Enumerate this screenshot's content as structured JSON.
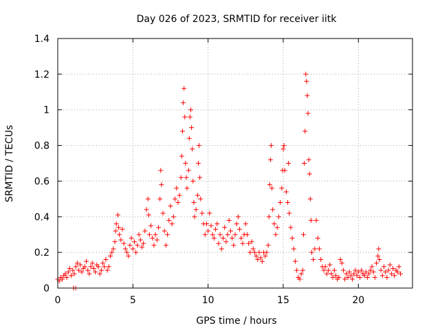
{
  "chart_data": {
    "type": "scatter",
    "title": "Day 026 of 2023, SRMTID for receiver iitk",
    "xlabel": "GPS time / hours",
    "ylabel": "SRMTID / TECUs",
    "xlim": [
      0,
      23.6
    ],
    "ylim": [
      0,
      1.4
    ],
    "xticks": [
      0,
      5,
      10,
      15,
      20
    ],
    "xtick_labels": [
      "0",
      "5",
      "10",
      "15",
      "20"
    ],
    "yticks": [
      0,
      0.2,
      0.4,
      0.6,
      0.8,
      1,
      1.2,
      1.4
    ],
    "ytick_labels": [
      "0",
      "0.2",
      "0.4",
      "0.6",
      "0.8",
      "1",
      "1.2",
      "1.4"
    ],
    "grid": true,
    "marker": "+",
    "color": "#ff0000",
    "series": [
      {
        "name": "SRMTID",
        "points": [
          [
            0.0,
            0.05
          ],
          [
            0.1,
            0.04
          ],
          [
            0.2,
            0.06
          ],
          [
            0.3,
            0.05
          ],
          [
            0.4,
            0.07
          ],
          [
            0.5,
            0.08
          ],
          [
            0.6,
            0.06
          ],
          [
            0.7,
            0.09
          ],
          [
            0.8,
            0.11
          ],
          [
            0.9,
            0.07
          ],
          [
            1.0,
            0.1
          ],
          [
            1.05,
            0.0
          ],
          [
            1.2,
            0.0
          ],
          [
            1.1,
            0.08
          ],
          [
            1.2,
            0.12
          ],
          [
            1.3,
            0.14
          ],
          [
            1.4,
            0.1
          ],
          [
            1.5,
            0.13
          ],
          [
            1.6,
            0.09
          ],
          [
            1.7,
            0.11
          ],
          [
            1.8,
            0.12
          ],
          [
            1.9,
            0.15
          ],
          [
            2.0,
            0.1
          ],
          [
            2.1,
            0.08
          ],
          [
            2.2,
            0.12
          ],
          [
            2.3,
            0.14
          ],
          [
            2.4,
            0.11
          ],
          [
            2.5,
            0.09
          ],
          [
            2.6,
            0.13
          ],
          [
            2.7,
            0.12
          ],
          [
            2.8,
            0.08
          ],
          [
            2.9,
            0.1
          ],
          [
            3.0,
            0.14
          ],
          [
            3.1,
            0.12
          ],
          [
            3.2,
            0.16
          ],
          [
            3.3,
            0.1
          ],
          [
            3.4,
            0.12
          ],
          [
            3.5,
            0.18
          ],
          [
            3.6,
            0.2
          ],
          [
            3.7,
            0.22
          ],
          [
            3.8,
            0.26
          ],
          [
            3.85,
            0.32
          ],
          [
            3.9,
            0.36
          ],
          [
            4.0,
            0.41
          ],
          [
            4.05,
            0.34
          ],
          [
            4.1,
            0.3
          ],
          [
            4.2,
            0.27
          ],
          [
            4.3,
            0.33
          ],
          [
            4.4,
            0.25
          ],
          [
            4.5,
            0.22
          ],
          [
            4.6,
            0.2
          ],
          [
            4.7,
            0.18
          ],
          [
            4.8,
            0.24
          ],
          [
            4.9,
            0.28
          ],
          [
            5.0,
            0.22
          ],
          [
            5.1,
            0.26
          ],
          [
            5.2,
            0.2
          ],
          [
            5.3,
            0.24
          ],
          [
            5.4,
            0.3
          ],
          [
            5.5,
            0.27
          ],
          [
            5.6,
            0.23
          ],
          [
            5.7,
            0.25
          ],
          [
            5.8,
            0.32
          ],
          [
            5.9,
            0.44
          ],
          [
            6.0,
            0.5
          ],
          [
            6.05,
            0.41
          ],
          [
            6.1,
            0.3
          ],
          [
            6.2,
            0.35
          ],
          [
            6.3,
            0.28
          ],
          [
            6.4,
            0.24
          ],
          [
            6.5,
            0.3
          ],
          [
            6.6,
            0.27
          ],
          [
            6.7,
            0.34
          ],
          [
            6.8,
            0.5
          ],
          [
            6.85,
            0.66
          ],
          [
            6.9,
            0.58
          ],
          [
            7.0,
            0.42
          ],
          [
            7.1,
            0.32
          ],
          [
            7.2,
            0.24
          ],
          [
            7.3,
            0.3
          ],
          [
            7.4,
            0.38
          ],
          [
            7.5,
            0.46
          ],
          [
            7.6,
            0.36
          ],
          [
            7.7,
            0.4
          ],
          [
            7.8,
            0.5
          ],
          [
            7.9,
            0.56
          ],
          [
            8.0,
            0.48
          ],
          [
            8.1,
            0.52
          ],
          [
            8.2,
            0.62
          ],
          [
            8.25,
            0.74
          ],
          [
            8.3,
            0.88
          ],
          [
            8.35,
            1.04
          ],
          [
            8.4,
            1.12
          ],
          [
            8.45,
            0.96
          ],
          [
            8.5,
            0.7
          ],
          [
            8.55,
            0.62
          ],
          [
            8.6,
            0.56
          ],
          [
            8.7,
            0.66
          ],
          [
            8.75,
            0.84
          ],
          [
            8.8,
            0.96
          ],
          [
            8.85,
            1.0
          ],
          [
            8.9,
            0.9
          ],
          [
            8.95,
            0.78
          ],
          [
            9.0,
            0.6
          ],
          [
            9.05,
            0.48
          ],
          [
            9.1,
            0.4
          ],
          [
            9.2,
            0.44
          ],
          [
            9.3,
            0.52
          ],
          [
            9.35,
            0.7
          ],
          [
            9.4,
            0.8
          ],
          [
            9.45,
            0.62
          ],
          [
            9.5,
            0.5
          ],
          [
            9.6,
            0.42
          ],
          [
            9.7,
            0.36
          ],
          [
            9.8,
            0.3
          ],
          [
            9.9,
            0.36
          ],
          [
            10.0,
            0.32
          ],
          [
            10.1,
            0.42
          ],
          [
            10.2,
            0.35
          ],
          [
            10.3,
            0.3
          ],
          [
            10.4,
            0.28
          ],
          [
            10.5,
            0.33
          ],
          [
            10.6,
            0.36
          ],
          [
            10.7,
            0.25
          ],
          [
            10.8,
            0.3
          ],
          [
            10.9,
            0.22
          ],
          [
            11.0,
            0.28
          ],
          [
            11.1,
            0.34
          ],
          [
            11.2,
            0.26
          ],
          [
            11.3,
            0.3
          ],
          [
            11.4,
            0.38
          ],
          [
            11.5,
            0.32
          ],
          [
            11.6,
            0.28
          ],
          [
            11.7,
            0.24
          ],
          [
            11.8,
            0.3
          ],
          [
            11.9,
            0.36
          ],
          [
            12.0,
            0.4
          ],
          [
            12.1,
            0.33
          ],
          [
            12.2,
            0.28
          ],
          [
            12.3,
            0.25
          ],
          [
            12.4,
            0.3
          ],
          [
            12.5,
            0.36
          ],
          [
            12.6,
            0.3
          ],
          [
            12.7,
            0.25
          ],
          [
            12.8,
            0.2
          ],
          [
            12.9,
            0.26
          ],
          [
            13.0,
            0.22
          ],
          [
            13.1,
            0.2
          ],
          [
            13.2,
            0.18
          ],
          [
            13.3,
            0.16
          ],
          [
            13.4,
            0.2
          ],
          [
            13.5,
            0.17
          ],
          [
            13.6,
            0.15
          ],
          [
            13.7,
            0.2
          ],
          [
            13.8,
            0.18
          ],
          [
            13.9,
            0.2
          ],
          [
            14.0,
            0.24
          ],
          [
            14.05,
            0.4
          ],
          [
            14.1,
            0.58
          ],
          [
            14.15,
            0.72
          ],
          [
            14.2,
            0.8
          ],
          [
            14.25,
            0.56
          ],
          [
            14.3,
            0.44
          ],
          [
            14.4,
            0.36
          ],
          [
            14.5,
            0.3
          ],
          [
            14.6,
            0.34
          ],
          [
            14.7,
            0.4
          ],
          [
            14.8,
            0.48
          ],
          [
            14.9,
            0.56
          ],
          [
            14.95,
            0.66
          ],
          [
            15.0,
            0.78
          ],
          [
            15.05,
            0.8
          ],
          [
            15.1,
            0.66
          ],
          [
            15.2,
            0.54
          ],
          [
            15.3,
            0.48
          ],
          [
            15.35,
            0.7
          ],
          [
            15.4,
            0.42
          ],
          [
            15.5,
            0.34
          ],
          [
            15.6,
            0.28
          ],
          [
            15.7,
            0.22
          ],
          [
            15.8,
            0.15
          ],
          [
            15.9,
            0.1
          ],
          [
            16.0,
            0.06
          ],
          [
            16.1,
            0.05
          ],
          [
            16.2,
            0.08
          ],
          [
            16.3,
            0.1
          ],
          [
            16.35,
            0.3
          ],
          [
            16.4,
            0.7
          ],
          [
            16.45,
            0.88
          ],
          [
            16.5,
            1.2
          ],
          [
            16.55,
            1.16
          ],
          [
            16.6,
            1.08
          ],
          [
            16.65,
            0.98
          ],
          [
            16.7,
            0.72
          ],
          [
            16.75,
            0.64
          ],
          [
            16.8,
            0.5
          ],
          [
            16.85,
            0.38
          ],
          [
            16.9,
            0.2
          ],
          [
            17.0,
            0.16
          ],
          [
            17.1,
            0.22
          ],
          [
            17.2,
            0.38
          ],
          [
            17.3,
            0.28
          ],
          [
            17.4,
            0.22
          ],
          [
            17.5,
            0.16
          ],
          [
            17.6,
            0.12
          ],
          [
            17.7,
            0.1
          ],
          [
            17.8,
            0.12
          ],
          [
            17.9,
            0.08
          ],
          [
            18.0,
            0.1
          ],
          [
            18.1,
            0.13
          ],
          [
            18.2,
            0.08
          ],
          [
            18.3,
            0.06
          ],
          [
            18.4,
            0.1
          ],
          [
            18.5,
            0.07
          ],
          [
            18.6,
            0.05
          ],
          [
            18.7,
            0.06
          ],
          [
            18.8,
            0.16
          ],
          [
            18.9,
            0.14
          ],
          [
            19.0,
            0.1
          ],
          [
            19.1,
            0.05
          ],
          [
            19.2,
            0.08
          ],
          [
            19.3,
            0.06
          ],
          [
            19.4,
            0.09
          ],
          [
            19.5,
            0.07
          ],
          [
            19.6,
            0.05
          ],
          [
            19.7,
            0.08
          ],
          [
            19.8,
            0.1
          ],
          [
            19.9,
            0.07
          ],
          [
            20.0,
            0.09
          ],
          [
            20.1,
            0.06
          ],
          [
            20.2,
            0.1
          ],
          [
            20.3,
            0.08
          ],
          [
            20.4,
            0.07
          ],
          [
            20.5,
            0.09
          ],
          [
            20.6,
            0.06
          ],
          [
            20.7,
            0.08
          ],
          [
            20.8,
            0.1
          ],
          [
            20.9,
            0.12
          ],
          [
            21.0,
            0.09
          ],
          [
            21.1,
            0.06
          ],
          [
            21.2,
            0.14
          ],
          [
            21.3,
            0.18
          ],
          [
            21.35,
            0.22
          ],
          [
            21.4,
            0.16
          ],
          [
            21.5,
            0.1
          ],
          [
            21.6,
            0.07
          ],
          [
            21.7,
            0.12
          ],
          [
            21.8,
            0.09
          ],
          [
            21.9,
            0.06
          ],
          [
            22.0,
            0.1
          ],
          [
            22.1,
            0.13
          ],
          [
            22.2,
            0.08
          ],
          [
            22.3,
            0.11
          ],
          [
            22.4,
            0.07
          ],
          [
            22.5,
            0.1
          ],
          [
            22.6,
            0.09
          ],
          [
            22.7,
            0.12
          ],
          [
            22.8,
            0.08
          ]
        ]
      }
    ]
  }
}
